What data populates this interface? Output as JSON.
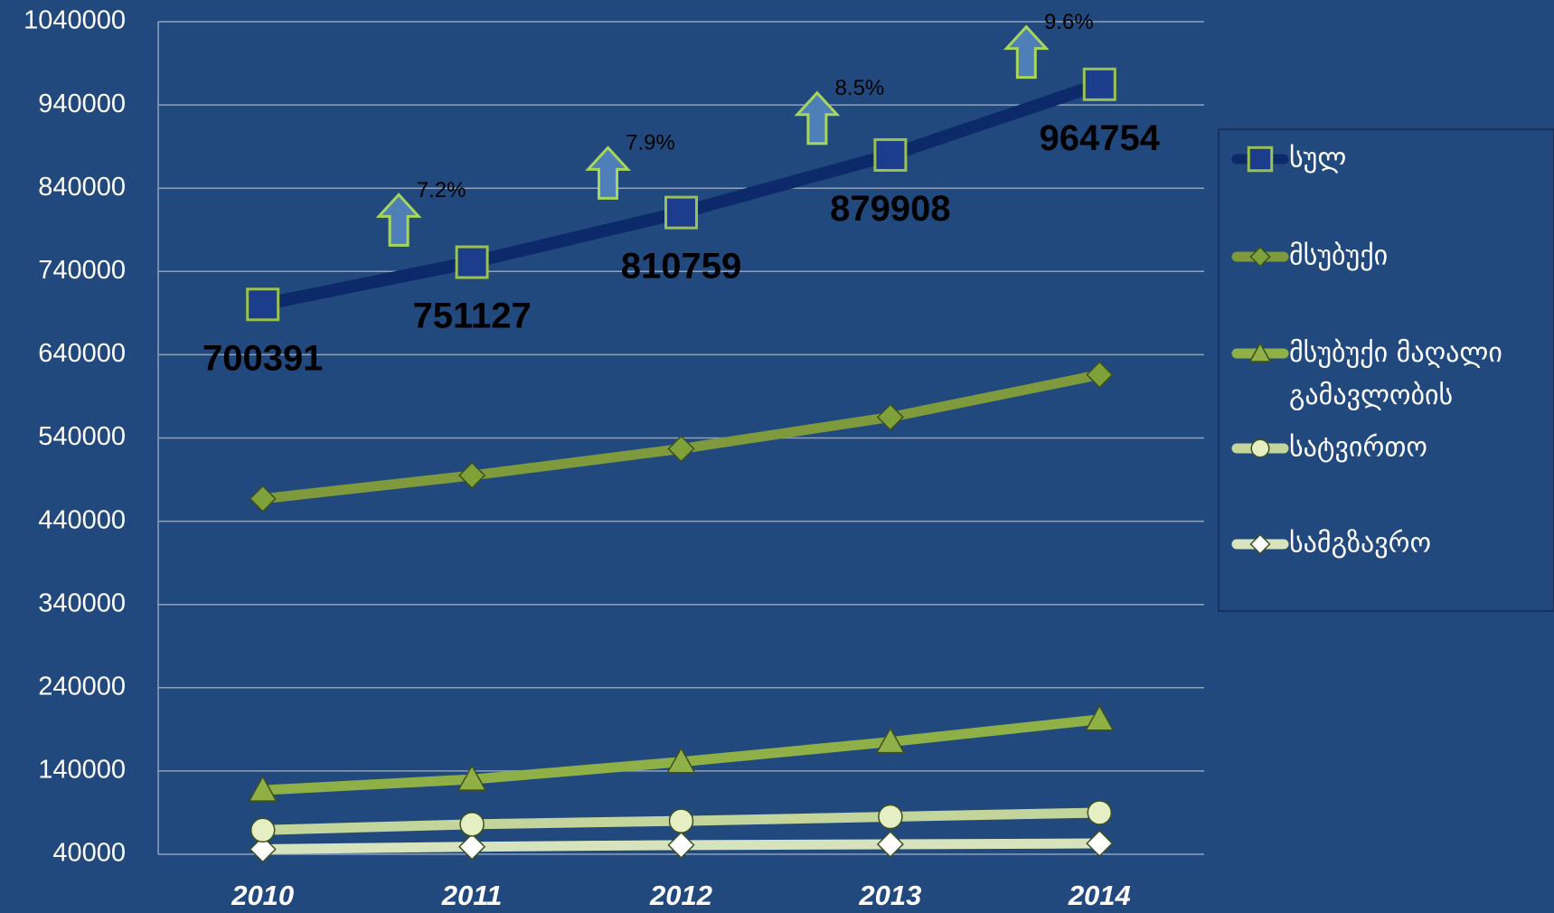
{
  "chart_data": {
    "type": "line",
    "categories": [
      "2010",
      "2011",
      "2012",
      "2013",
      "2014"
    ],
    "series": [
      {
        "name": "სულ",
        "color": "#0c2a6a",
        "marker": "square",
        "marker_color": "#1c3c8c",
        "values": [
          700391,
          751127,
          810759,
          879908,
          964754
        ]
      },
      {
        "name": "მსუბუქი",
        "color": "#7e9a3c",
        "marker": "diamond",
        "marker_color": "#7ea13a",
        "values": [
          467000,
          495000,
          527000,
          565000,
          616000
        ]
      },
      {
        "name": "მსუბუქი მაღალი გამავლობის",
        "color": "#8eb047",
        "marker": "triangle",
        "marker_color": "#8eb047",
        "values": [
          117000,
          130000,
          151000,
          175000,
          202000
        ]
      },
      {
        "name": "სატვირთო",
        "color": "#c3d59b",
        "marker": "circle",
        "marker_color": "#e6efc4",
        "values": [
          69000,
          76000,
          80000,
          85000,
          90000
        ]
      },
      {
        "name": "სამგზავრო",
        "color": "#d7e3bd",
        "marker": "diamond",
        "marker_color": "#ffffff",
        "values": [
          46000,
          49000,
          51000,
          52000,
          53000
        ]
      }
    ],
    "annotations": [
      "7.2%",
      "7.9%",
      "8.5%",
      "9.6%"
    ],
    "ylim": [
      40000,
      1040000
    ],
    "yticks": [
      40000,
      140000,
      240000,
      340000,
      440000,
      540000,
      640000,
      740000,
      840000,
      940000,
      1040000
    ],
    "grid": true,
    "legend": "right"
  }
}
